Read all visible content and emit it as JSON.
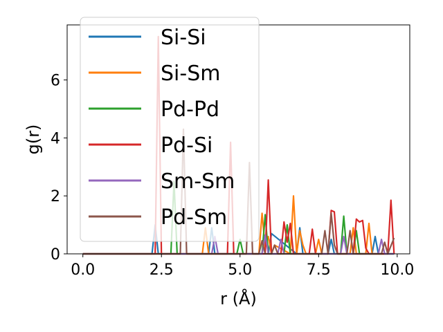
{
  "chart_data": {
    "type": "line",
    "title": "",
    "xlabel": "r (Å)",
    "ylabel": "g(r)",
    "xlim": [
      -0.5,
      10.4
    ],
    "ylim": [
      0,
      7.9
    ],
    "xticks": [
      0.0,
      2.5,
      5.0,
      7.5,
      10.0
    ],
    "xtick_labels": [
      "0.0",
      "2.5",
      "5.0",
      "7.5",
      "10.0"
    ],
    "yticks": [
      0,
      2,
      4,
      6
    ],
    "ytick_labels": [
      "0",
      "2",
      "4",
      "6"
    ],
    "grid": false,
    "legend_position": "top-left",
    "series": [
      {
        "name": "Si-Si",
        "color": "#1f77b4",
        "x": [
          0,
          2.2,
          2.3,
          2.4,
          4.0,
          4.1,
          4.2,
          5.9,
          6.0,
          6.8,
          6.9,
          7.0,
          7.1,
          7.8,
          7.9,
          8.0,
          9.2,
          9.3,
          9.4,
          9.9
        ],
        "y": [
          0,
          0,
          1.0,
          0,
          0,
          0.9,
          0,
          0,
          0.7,
          0,
          0.9,
          0,
          0,
          0,
          0.5,
          0,
          0,
          0.6,
          0,
          0
        ]
      },
      {
        "name": "Si-Sm",
        "color": "#ff7f0e",
        "x": [
          0,
          3.8,
          3.9,
          4.0,
          5.6,
          5.7,
          5.8,
          5.9,
          6.0,
          6.1,
          6.6,
          6.7,
          6.8,
          6.9,
          7.0,
          7.1,
          7.4,
          7.5,
          7.6,
          8.5,
          8.6,
          8.7,
          9.0,
          9.1,
          9.2,
          9.9
        ],
        "y": [
          0,
          0,
          0.9,
          0,
          0,
          1.4,
          0.2,
          0.6,
          0,
          0.3,
          0,
          2.0,
          0,
          0.8,
          0.3,
          0,
          0,
          0.5,
          0,
          0,
          0.9,
          0,
          0,
          1.05,
          0,
          0
        ]
      },
      {
        "name": "Pd-Pd",
        "color": "#2ca02c",
        "x": [
          0,
          2.8,
          2.9,
          3.0,
          4.9,
          5.0,
          5.1,
          5.7,
          5.8,
          5.9,
          6.4,
          6.5,
          6.6,
          8.2,
          8.3,
          8.4,
          8.6,
          8.7,
          8.8,
          9.9
        ],
        "y": [
          0,
          0,
          2.5,
          0,
          0,
          0.5,
          0,
          0,
          1.35,
          0,
          0,
          1.0,
          0,
          0,
          1.3,
          0,
          0,
          0.8,
          0,
          0
        ]
      },
      {
        "name": "Pd-Si",
        "color": "#d62728",
        "x": [
          0,
          2.3,
          2.4,
          2.5,
          4.6,
          4.7,
          4.8,
          4.9,
          5.8,
          5.9,
          6.0,
          6.3,
          6.4,
          6.5,
          6.6,
          6.7,
          7.2,
          7.3,
          7.4,
          7.8,
          7.9,
          8.0,
          8.1,
          8.6,
          8.7,
          8.8,
          8.9,
          9.0,
          9.1,
          9.7,
          9.8,
          9.9
        ],
        "y": [
          0,
          0,
          7.5,
          0,
          0,
          3.85,
          0,
          0,
          0,
          2.55,
          0,
          0,
          1.1,
          0.4,
          1.05,
          0,
          0,
          0.85,
          0,
          0,
          1.5,
          1.45,
          0,
          0,
          1.2,
          1.1,
          1.15,
          0.2,
          0,
          0,
          1.85,
          0
        ]
      },
      {
        "name": "Sm-Sm",
        "color": "#9467bd",
        "x": [
          0,
          4.1,
          4.2,
          4.3,
          5.7,
          5.8,
          5.9,
          6.2,
          6.3,
          6.4,
          8.2,
          8.3,
          8.4,
          9.4,
          9.5,
          9.6,
          9.9
        ],
        "y": [
          0,
          0,
          0.6,
          0,
          0,
          0.65,
          0,
          0,
          0.5,
          0,
          0,
          0.6,
          0,
          0,
          0.5,
          0,
          0
        ]
      },
      {
        "name": "Pd-Sm",
        "color": "#8c564b",
        "x": [
          0,
          3.1,
          3.2,
          3.3,
          5.2,
          5.3,
          5.4,
          5.6,
          5.7,
          5.8,
          6.0,
          6.1,
          6.2,
          7.6,
          7.7,
          7.8,
          7.9,
          8.0,
          8.1,
          8.4,
          8.5,
          8.6,
          9.5,
          9.6,
          9.7,
          9.9
        ],
        "y": [
          0,
          0,
          4.3,
          0,
          0,
          3.15,
          0,
          0,
          0.45,
          0,
          0,
          0.3,
          0,
          0,
          0.8,
          0,
          1.4,
          0.3,
          0,
          0,
          0.8,
          0,
          0,
          0.4,
          0,
          0.55
        ]
      }
    ]
  }
}
